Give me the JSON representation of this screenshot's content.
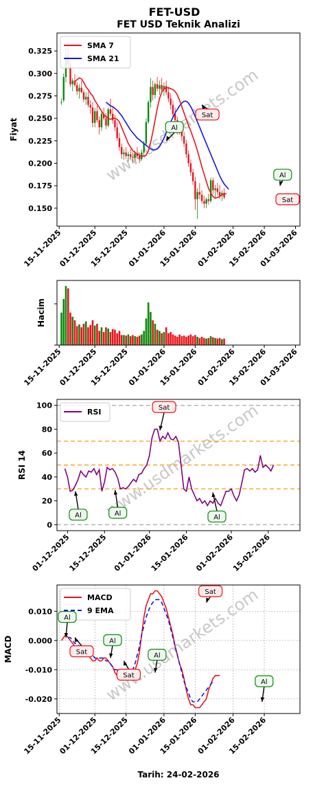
{
  "header": {
    "title": "FET-USD",
    "subtitle": "FET USD Teknik Analizi"
  },
  "footer": {
    "date_label": "Tarih: 24-02-2026"
  },
  "watermark": "www.usdmarkets.com",
  "colors": {
    "sma7": "#e8141b",
    "sma21": "#1515e0",
    "up": "#0a8a0a",
    "down": "#e8141b",
    "rsi": "#800080",
    "macd": "#e8141b",
    "ema9": "#1515e0",
    "buy_box": "#0a8a0a",
    "sell_box": "#e8141b",
    "guide_orange": "#f5a623",
    "guide_gray": "#b0b0b0"
  },
  "chart_data": [
    {
      "id": "price",
      "type": "line",
      "ylabel": "Fiyat",
      "ylim": [
        0.13,
        0.345
      ],
      "yticks": [
        0.15,
        0.175,
        0.2,
        0.225,
        0.25,
        0.275,
        0.3,
        0.325
      ],
      "ytick_labels": [
        "0.150",
        "0.175",
        "0.200",
        "0.225",
        "0.250",
        "0.275",
        "0.300",
        "0.325"
      ],
      "xlim": [
        "2025-11-14",
        "2026-03-03"
      ],
      "xticks": [
        "2025-11-15",
        "2025-12-01",
        "2025-12-15",
        "2026-01-01",
        "2026-01-15",
        "2026-02-01",
        "2026-02-15",
        "2026-03-01"
      ],
      "xtick_labels": [
        "15-11-2025",
        "01-12-2025",
        "15-12-2025",
        "01-01-2026",
        "15-01-2026",
        "01-02-2026",
        "15-02-2026",
        "01-03-2026"
      ],
      "legend": {
        "placement": "top-left",
        "entries": [
          "SMA 7",
          "SMA 21"
        ]
      },
      "candles_start": "2025-11-16",
      "candles": [
        [
          0.268,
          0.272,
          0.265,
          0.268
        ],
        [
          0.27,
          0.3,
          0.268,
          0.296
        ],
        [
          0.296,
          0.33,
          0.29,
          0.32
        ],
        [
          0.32,
          0.335,
          0.305,
          0.31
        ],
        [
          0.31,
          0.318,
          0.285,
          0.288
        ],
        [
          0.288,
          0.295,
          0.28,
          0.292
        ],
        [
          0.292,
          0.299,
          0.285,
          0.287
        ],
        [
          0.287,
          0.29,
          0.276,
          0.28
        ],
        [
          0.28,
          0.288,
          0.272,
          0.284
        ],
        [
          0.284,
          0.292,
          0.278,
          0.279
        ],
        [
          0.279,
          0.282,
          0.268,
          0.271
        ],
        [
          0.271,
          0.279,
          0.265,
          0.274
        ],
        [
          0.274,
          0.28,
          0.262,
          0.265
        ],
        [
          0.265,
          0.27,
          0.255,
          0.262
        ],
        [
          0.262,
          0.268,
          0.24,
          0.245
        ],
        [
          0.245,
          0.262,
          0.24,
          0.258
        ],
        [
          0.258,
          0.264,
          0.245,
          0.248
        ],
        [
          0.248,
          0.252,
          0.232,
          0.24
        ],
        [
          0.24,
          0.258,
          0.236,
          0.255
        ],
        [
          0.255,
          0.262,
          0.248,
          0.25
        ],
        [
          0.25,
          0.256,
          0.238,
          0.242
        ],
        [
          0.242,
          0.262,
          0.24,
          0.26
        ],
        [
          0.26,
          0.272,
          0.252,
          0.255
        ],
        [
          0.255,
          0.262,
          0.244,
          0.248
        ],
        [
          0.248,
          0.254,
          0.236,
          0.24
        ],
        [
          0.24,
          0.246,
          0.225,
          0.228
        ],
        [
          0.228,
          0.234,
          0.214,
          0.218
        ],
        [
          0.218,
          0.222,
          0.205,
          0.21
        ],
        [
          0.21,
          0.216,
          0.204,
          0.212
        ],
        [
          0.212,
          0.218,
          0.205,
          0.208
        ],
        [
          0.208,
          0.213,
          0.202,
          0.21
        ],
        [
          0.21,
          0.216,
          0.205,
          0.207
        ],
        [
          0.207,
          0.212,
          0.2,
          0.206
        ],
        [
          0.206,
          0.214,
          0.202,
          0.211
        ],
        [
          0.211,
          0.218,
          0.205,
          0.208
        ],
        [
          0.208,
          0.212,
          0.2,
          0.205
        ],
        [
          0.205,
          0.215,
          0.203,
          0.212
        ],
        [
          0.212,
          0.225,
          0.208,
          0.222
        ],
        [
          0.222,
          0.25,
          0.22,
          0.246
        ],
        [
          0.246,
          0.27,
          0.244,
          0.268
        ],
        [
          0.268,
          0.295,
          0.262,
          0.285
        ],
        [
          0.285,
          0.292,
          0.27,
          0.276
        ],
        [
          0.276,
          0.29,
          0.272,
          0.288
        ],
        [
          0.288,
          0.296,
          0.28,
          0.283
        ],
        [
          0.283,
          0.292,
          0.276,
          0.287
        ],
        [
          0.287,
          0.295,
          0.28,
          0.282
        ],
        [
          0.282,
          0.29,
          0.275,
          0.286
        ],
        [
          0.286,
          0.292,
          0.276,
          0.279
        ],
        [
          0.279,
          0.285,
          0.268,
          0.272
        ],
        [
          0.272,
          0.278,
          0.26,
          0.265
        ],
        [
          0.265,
          0.27,
          0.25,
          0.255
        ],
        [
          0.255,
          0.262,
          0.242,
          0.248
        ],
        [
          0.248,
          0.252,
          0.236,
          0.24
        ],
        [
          0.24,
          0.246,
          0.232,
          0.238
        ],
        [
          0.238,
          0.244,
          0.225,
          0.23
        ],
        [
          0.23,
          0.235,
          0.218,
          0.222
        ],
        [
          0.222,
          0.226,
          0.206,
          0.21
        ],
        [
          0.21,
          0.214,
          0.196,
          0.2
        ],
        [
          0.2,
          0.204,
          0.186,
          0.19
        ],
        [
          0.19,
          0.194,
          0.176,
          0.18
        ],
        [
          0.18,
          0.185,
          0.148,
          0.16
        ],
        [
          0.16,
          0.172,
          0.138,
          0.168
        ],
        [
          0.168,
          0.178,
          0.16,
          0.165
        ],
        [
          0.165,
          0.17,
          0.155,
          0.158
        ],
        [
          0.158,
          0.164,
          0.15,
          0.155
        ],
        [
          0.155,
          0.162,
          0.15,
          0.16
        ],
        [
          0.16,
          0.166,
          0.154,
          0.158
        ],
        [
          0.158,
          0.184,
          0.156,
          0.181
        ],
        [
          0.181,
          0.184,
          0.166,
          0.17
        ],
        [
          0.17,
          0.176,
          0.162,
          0.172
        ],
        [
          0.172,
          0.178,
          0.164,
          0.168
        ],
        [
          0.168,
          0.176,
          0.16,
          0.164
        ],
        [
          0.164,
          0.17,
          0.158,
          0.167
        ],
        [
          0.167,
          0.172,
          0.16,
          0.162
        ]
      ],
      "sma7_start": "2025-11-22",
      "sma7": [
        0.291,
        0.293,
        0.295,
        0.294,
        0.29,
        0.285,
        0.282,
        0.278,
        0.275,
        0.27,
        0.266,
        0.262,
        0.258,
        0.254,
        0.252,
        0.25,
        0.249,
        0.25,
        0.25,
        0.249,
        0.246,
        0.24,
        0.234,
        0.228,
        0.222,
        0.218,
        0.214,
        0.212,
        0.21,
        0.209,
        0.208,
        0.208,
        0.209,
        0.214,
        0.223,
        0.235,
        0.248,
        0.261,
        0.272,
        0.279,
        0.283,
        0.284,
        0.284,
        0.283,
        0.282,
        0.28,
        0.276,
        0.27,
        0.263,
        0.256,
        0.249,
        0.242,
        0.236,
        0.229,
        0.222,
        0.214,
        0.205,
        0.196,
        0.188,
        0.18,
        0.172,
        0.167,
        0.163,
        0.161,
        0.162,
        0.163,
        0.165,
        0.166,
        0.166
      ],
      "sma21_start": "2025-12-06",
      "sma21": [
        0.268,
        0.266,
        0.264,
        0.263,
        0.261,
        0.259,
        0.256,
        0.253,
        0.249,
        0.245,
        0.241,
        0.237,
        0.234,
        0.231,
        0.228,
        0.226,
        0.224,
        0.222,
        0.22,
        0.218,
        0.216,
        0.215,
        0.215,
        0.216,
        0.219,
        0.223,
        0.228,
        0.234,
        0.24,
        0.246,
        0.251,
        0.256,
        0.26,
        0.264,
        0.267,
        0.269,
        0.269,
        0.267,
        0.263,
        0.258,
        0.252,
        0.246,
        0.24,
        0.234,
        0.228,
        0.222,
        0.216,
        0.21,
        0.204,
        0.198,
        0.192,
        0.186,
        0.181,
        0.177,
        0.174,
        0.171
      ],
      "annotations": [
        {
          "label": "Al",
          "kind": "buy",
          "date": "2026-01-02",
          "value": 0.225
        },
        {
          "label": "Sat",
          "kind": "sell",
          "date": "2026-01-18",
          "value": 0.265
        },
        {
          "label": "Al",
          "kind": "buy",
          "date": "2026-02-22",
          "value": 0.175
        },
        {
          "label": "Sat",
          "kind": "sell",
          "date": "2026-02-26",
          "value": 0.163
        }
      ]
    },
    {
      "id": "volume",
      "type": "bar",
      "ylabel": "Hacim",
      "xlim": [
        "2025-11-14",
        "2026-03-03"
      ],
      "xticks": [
        "2025-11-15",
        "2025-12-01",
        "2025-12-15",
        "2026-01-01",
        "2026-01-15",
        "2026-02-01",
        "2026-02-15",
        "2026-03-01"
      ],
      "xtick_labels": [
        "15-11-2025",
        "01-12-2025",
        "15-12-2025",
        "01-01-2026",
        "15-01-2026",
        "01-02-2026",
        "15-02-2026",
        "01-03-2026"
      ],
      "start": "2025-11-16",
      "values": [
        0.55,
        0.78,
        1.0,
        0.96,
        0.55,
        0.48,
        0.42,
        0.32,
        0.35,
        0.3,
        0.36,
        0.4,
        0.3,
        0.34,
        0.42,
        0.33,
        0.36,
        0.24,
        0.3,
        0.22,
        0.3,
        0.28,
        0.22,
        0.27,
        0.26,
        0.2,
        0.24,
        0.17,
        0.17,
        0.16,
        0.18,
        0.15,
        0.17,
        0.15,
        0.14,
        0.16,
        0.18,
        0.24,
        0.45,
        0.72,
        0.56,
        0.42,
        0.36,
        0.26,
        0.24,
        0.2,
        0.22,
        0.3,
        0.2,
        0.22,
        0.18,
        0.16,
        0.14,
        0.18,
        0.15,
        0.16,
        0.14,
        0.16,
        0.18,
        0.15,
        0.17,
        0.14,
        0.12,
        0.14,
        0.12,
        0.11,
        0.12,
        0.15,
        0.13,
        0.12,
        0.11,
        0.12,
        0.1,
        0.11
      ]
    },
    {
      "id": "rsi",
      "type": "line",
      "ylabel": "RSI 14",
      "ylim": [
        -5,
        105
      ],
      "yticks": [
        0,
        20,
        40,
        60,
        80,
        100
      ],
      "ytick_labels": [
        "0",
        "20",
        "40",
        "60",
        "80",
        "100"
      ],
      "guides": {
        "gray": [
          0,
          100
        ],
        "orange": [
          30,
          50,
          70
        ]
      },
      "xlim": [
        "2025-11-27",
        "2026-02-27"
      ],
      "xticks": [
        "2025-12-01",
        "2025-12-15",
        "2026-01-01",
        "2026-01-15",
        "2026-02-01",
        "2026-02-15"
      ],
      "xtick_labels": [
        "01-12-2025",
        "15-12-2025",
        "01-01-2026",
        "15-01-2026",
        "01-02-2026",
        "15-02-2026"
      ],
      "legend": {
        "placement": "top-left",
        "entries": [
          "RSI"
        ]
      },
      "start": "2025-11-30",
      "values": [
        47,
        40,
        28,
        29,
        33,
        38,
        45,
        42,
        40,
        45,
        44,
        47,
        42,
        46,
        28,
        36,
        48,
        46,
        47,
        44,
        39,
        30,
        31,
        30,
        32,
        35,
        38,
        36,
        42,
        43,
        47,
        50,
        58,
        73,
        80,
        80,
        70,
        74,
        72,
        77,
        72,
        71,
        74,
        69,
        50,
        30,
        28,
        40,
        30,
        25,
        20,
        22,
        18,
        20,
        16,
        20,
        18,
        22,
        18,
        16,
        22,
        28,
        28,
        30,
        24,
        20,
        25,
        35,
        46,
        47,
        45,
        47,
        44,
        46,
        58,
        48,
        50,
        48,
        45,
        50
      ],
      "annotations": [
        {
          "label": "Al",
          "kind": "buy",
          "date": "2025-12-04",
          "value": 28
        },
        {
          "label": "Al",
          "kind": "buy",
          "date": "2025-12-19",
          "value": 29
        },
        {
          "label": "Sat",
          "kind": "sell",
          "date": "2026-01-05",
          "value": 79
        },
        {
          "label": "Al",
          "kind": "buy",
          "date": "2026-01-25",
          "value": 27
        }
      ]
    },
    {
      "id": "macd",
      "type": "line",
      "ylabel": "MACD",
      "ylim": [
        -0.025,
        0.019
      ],
      "yticks": [
        -0.02,
        -0.01,
        0.0,
        0.01
      ],
      "ytick_labels": [
        "-0.020",
        "-0.010",
        "0.000",
        "0.010"
      ],
      "xlim": [
        "2025-11-14",
        "2026-03-03"
      ],
      "xticks": [
        "2025-11-15",
        "2025-12-01",
        "2025-12-15",
        "2026-01-01",
        "2026-01-15",
        "2026-02-01",
        "2026-02-15"
      ],
      "xtick_labels": [
        "15-11-2025",
        "01-12-2025",
        "15-12-2025",
        "01-01-2026",
        "15-01-2026",
        "01-02-2026",
        "15-02-2026"
      ],
      "legend": {
        "placement": "top-left",
        "entries": [
          "MACD",
          "9 EMA"
        ]
      },
      "start": "2025-11-16",
      "macd": [
        0.0,
        0.001,
        0.002,
        0.001,
        0.0,
        -0.001,
        -0.002,
        -0.003,
        -0.003,
        -0.004,
        -0.005,
        -0.005,
        -0.005,
        -0.006,
        -0.007,
        -0.007,
        -0.006,
        -0.007,
        -0.007,
        -0.006,
        -0.006,
        -0.007,
        -0.008,
        -0.009,
        -0.011,
        -0.012,
        -0.012,
        -0.012,
        -0.012,
        -0.011,
        -0.011,
        -0.011,
        -0.011,
        -0.01,
        -0.008,
        -0.004,
        0.002,
        0.008,
        0.012,
        0.014,
        0.016,
        0.016,
        0.017,
        0.017,
        0.016,
        0.015,
        0.013,
        0.011,
        0.008,
        0.005,
        0.002,
        -0.002,
        -0.005,
        -0.008,
        -0.01,
        -0.013,
        -0.017,
        -0.02,
        -0.022,
        -0.022,
        -0.023,
        -0.023,
        -0.023,
        -0.022,
        -0.021,
        -0.02,
        -0.017,
        -0.015,
        -0.013,
        -0.012,
        -0.012,
        -0.012
      ],
      "ema9_start": "2025-11-19",
      "ema9": [
        0.001,
        0.001,
        0.0,
        -0.001,
        -0.001,
        -0.002,
        -0.003,
        -0.003,
        -0.004,
        -0.004,
        -0.005,
        -0.005,
        -0.006,
        -0.006,
        -0.006,
        -0.006,
        -0.006,
        -0.007,
        -0.007,
        -0.008,
        -0.009,
        -0.01,
        -0.01,
        -0.011,
        -0.011,
        -0.011,
        -0.011,
        -0.011,
        -0.011,
        -0.01,
        -0.008,
        -0.005,
        -0.002,
        0.002,
        0.005,
        0.008,
        0.01,
        0.012,
        0.013,
        0.014,
        0.014,
        0.014,
        0.013,
        0.011,
        0.009,
        0.007,
        0.004,
        0.001,
        -0.002,
        -0.005,
        -0.008,
        -0.011,
        -0.014,
        -0.016,
        -0.018,
        -0.02,
        -0.021,
        -0.021,
        -0.021,
        -0.02,
        -0.019,
        -0.018,
        -0.017,
        -0.016,
        -0.015,
        -0.014
      ],
      "annotations": [
        {
          "label": "Al",
          "kind": "buy",
          "date": "2025-11-18",
          "value": 0.001
        },
        {
          "label": "Sat",
          "kind": "sell",
          "date": "2025-11-22",
          "value": 0.001
        },
        {
          "label": "Al",
          "kind": "buy",
          "date": "2025-12-08",
          "value": -0.006
        },
        {
          "label": "Sat",
          "kind": "sell",
          "date": "2025-12-14",
          "value": -0.007
        },
        {
          "label": "Al",
          "kind": "buy",
          "date": "2025-12-28",
          "value": -0.011
        },
        {
          "label": "Sat",
          "kind": "sell",
          "date": "2026-01-20",
          "value": 0.013
        },
        {
          "label": "Al",
          "kind": "buy",
          "date": "2026-02-14",
          "value": -0.021
        }
      ]
    }
  ]
}
